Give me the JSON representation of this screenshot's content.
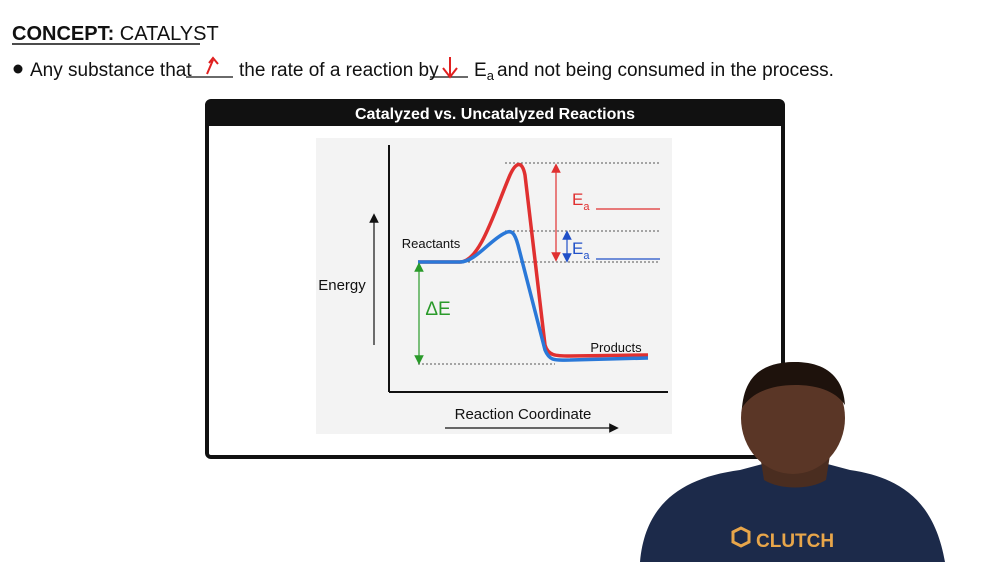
{
  "header": {
    "label": "CONCEPT:",
    "topic": "CATALYST"
  },
  "definition": {
    "part1": "Any substance that",
    "part2": "the rate of a reaction by",
    "symbol": "E",
    "subscript": "a",
    "part3": "and not being consumed in the process."
  },
  "figure": {
    "title": "Catalyzed vs. Uncatalyzed Reactions",
    "y_axis_label": "Energy",
    "x_axis_label": "Reaction Coordinate",
    "reactants_label": "Reactants",
    "products_label": "Products",
    "delta_label": "ΔE",
    "uncatalyzed_label": {
      "symbol": "E",
      "subscript": "a"
    },
    "catalyzed_label": {
      "symbol": "E",
      "subscript": "a"
    }
  },
  "shirt_logo": "CLUTCH"
}
